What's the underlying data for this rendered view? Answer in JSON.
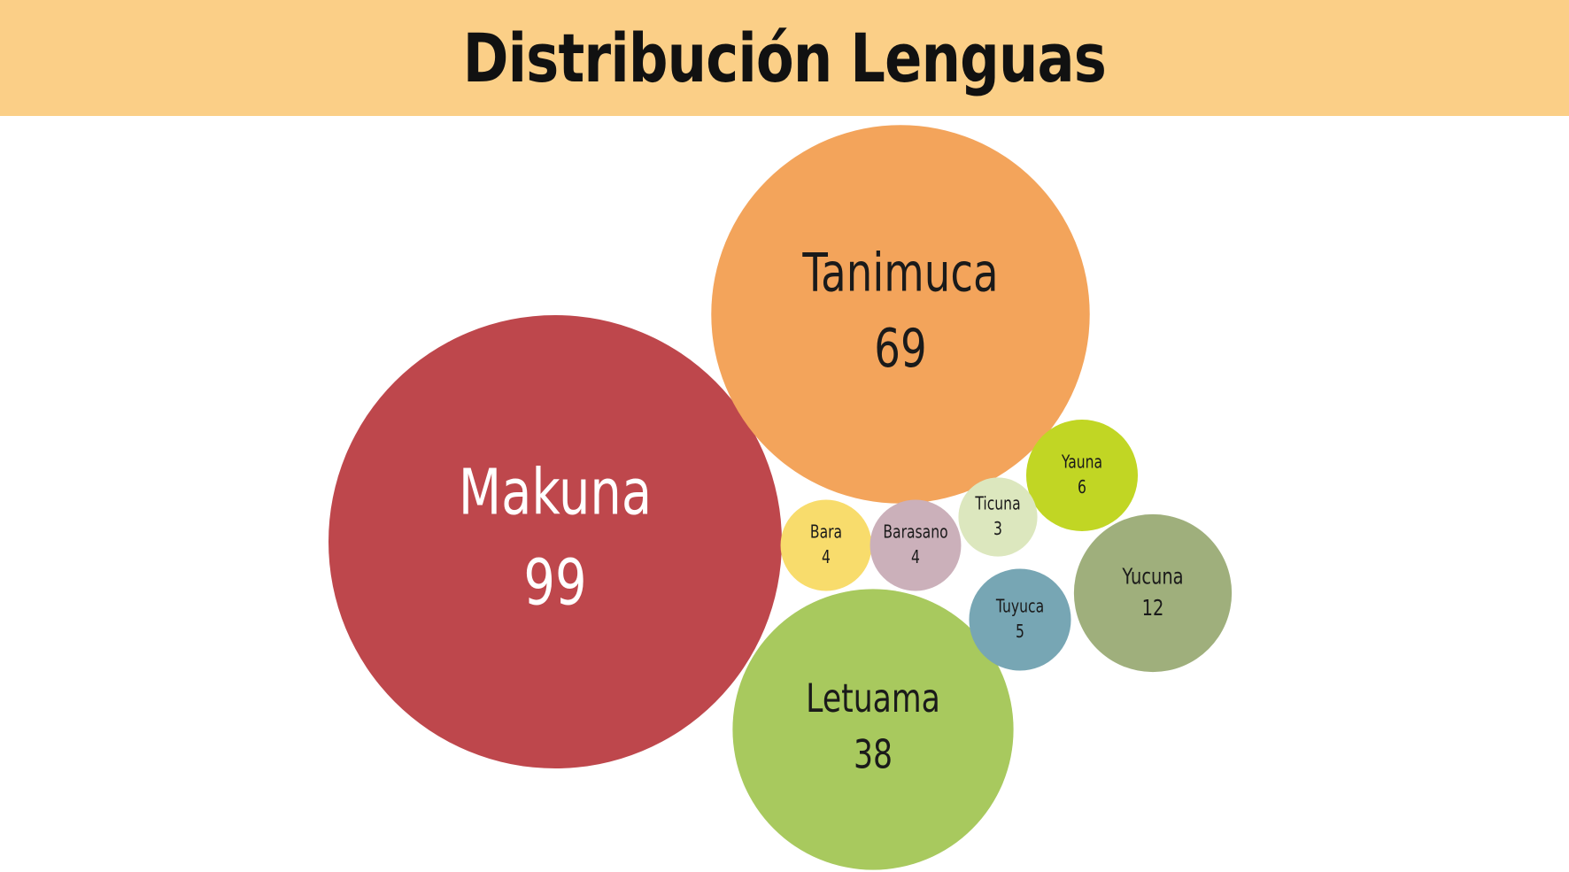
{
  "title": "Distribución Lenguas",
  "chart_data": {
    "type": "bubble",
    "title": "Distribución Lenguas",
    "series": [
      {
        "label": "Makuna",
        "value": 99,
        "color": "#BE474C",
        "text_color": "#FFFFFF"
      },
      {
        "label": "Tanimuca",
        "value": 69,
        "color": "#F3A45B",
        "text_color": "#1A1A1A"
      },
      {
        "label": "Letuama",
        "value": 38,
        "color": "#A8C95E",
        "text_color": "#1A1A1A"
      },
      {
        "label": "Yucuna",
        "value": 12,
        "color": "#9FAF7C",
        "text_color": "#1A1A1A"
      },
      {
        "label": "Yauna",
        "value": 6,
        "color": "#C1D624",
        "text_color": "#1A1A1A"
      },
      {
        "label": "Tuyuca",
        "value": 5,
        "color": "#77A6B4",
        "text_color": "#1A1A1A"
      },
      {
        "label": "Bara",
        "value": 4,
        "color": "#F8DC6C",
        "text_color": "#1A1A1A"
      },
      {
        "label": "Barasano",
        "value": 4,
        "color": "#CBB0BA",
        "text_color": "#1A1A1A"
      },
      {
        "label": "Ticuna",
        "value": 3,
        "color": "#DCE7BE",
        "text_color": "#1A1A1A"
      }
    ]
  }
}
